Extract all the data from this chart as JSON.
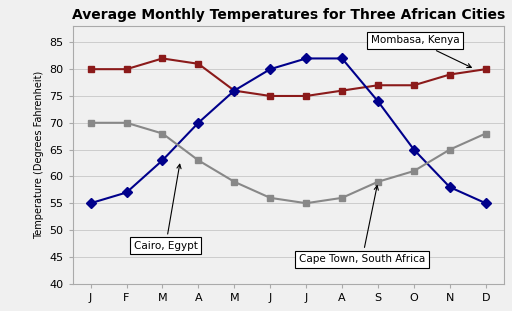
{
  "title": "Average Monthly Temperatures for Three African Cities",
  "ylabel": "Temperature (Degrees Fahrenheit)",
  "months": [
    "J",
    "F",
    "M",
    "A",
    "M",
    "J",
    "J",
    "A",
    "S",
    "O",
    "N",
    "D"
  ],
  "mombasa": [
    80,
    80,
    82,
    81,
    76,
    75,
    75,
    76,
    77,
    77,
    79,
    80
  ],
  "cairo": [
    55,
    57,
    63,
    70,
    76,
    80,
    82,
    82,
    74,
    65,
    58,
    55
  ],
  "capetown": [
    70,
    70,
    68,
    63,
    59,
    56,
    55,
    56,
    59,
    61,
    65,
    68
  ],
  "mombasa_color": "#8B1A1A",
  "cairo_color": "#00008B",
  "capetown_color": "#888888",
  "ylim": [
    40,
    88
  ],
  "yticks": [
    40,
    45,
    50,
    55,
    60,
    65,
    70,
    75,
    80,
    85
  ],
  "bg_color": "#f0f0f0",
  "plot_bg": "#f0f0f0",
  "border_color": "#aaaaaa",
  "grid_color": "#cccccc",
  "title_fontsize": 10,
  "axis_label_fontsize": 7,
  "tick_fontsize": 8,
  "annot_fontsize": 7.5,
  "linewidth": 1.5,
  "markersize": 5
}
